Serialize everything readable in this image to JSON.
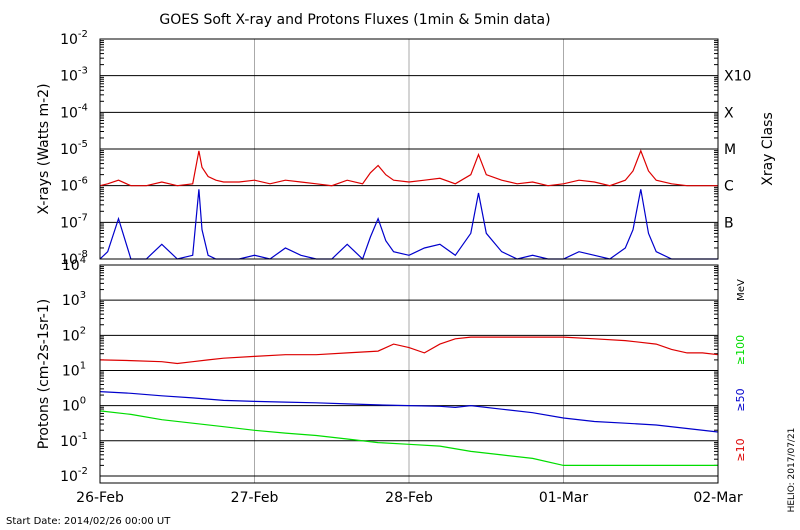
{
  "chart_data": [
    {
      "type": "line",
      "title": "GOES Soft X-ray and Protons Fluxes   (1min & 5min data)",
      "ylabel": "X-rays (Watts m-2)",
      "yscale": "log",
      "ylim_exp": [
        -8,
        -2
      ],
      "ytick_exp": [
        -8,
        -7,
        -6,
        -5,
        -4,
        -3,
        -2
      ],
      "x_dates": [
        "26-Feb",
        "27-Feb",
        "28-Feb",
        "01-Mar",
        "02-Mar"
      ],
      "xlim_days": [
        0,
        4
      ],
      "right_axis_label": "Xray Class",
      "class_labels": [
        {
          "label": "B",
          "exp": -7
        },
        {
          "label": "C",
          "exp": -6
        },
        {
          "label": "M",
          "exp": -5
        },
        {
          "label": "X",
          "exp": -4
        },
        {
          "label": "X10",
          "exp": -3
        }
      ],
      "series": [
        {
          "name": "",
          "color": "#dd0000",
          "x": [
            0,
            0.05,
            0.12,
            0.2,
            0.3,
            0.4,
            0.5,
            0.6,
            0.64,
            0.66,
            0.7,
            0.75,
            0.8,
            0.9,
            1.0,
            1.1,
            1.2,
            1.3,
            1.4,
            1.5,
            1.6,
            1.7,
            1.75,
            1.8,
            1.85,
            1.9,
            2.0,
            2.1,
            2.2,
            2.3,
            2.4,
            2.45,
            2.5,
            2.6,
            2.7,
            2.8,
            2.9,
            3.0,
            3.1,
            3.2,
            3.3,
            3.4,
            3.45,
            3.5,
            3.55,
            3.6,
            3.7,
            3.8,
            3.9,
            4.0
          ],
          "y_exp": [
            -6.0,
            -5.95,
            -5.85,
            -6.0,
            -6.0,
            -5.9,
            -6.0,
            -5.95,
            -5.05,
            -5.5,
            -5.75,
            -5.85,
            -5.9,
            -5.9,
            -5.85,
            -5.95,
            -5.85,
            -5.9,
            -5.95,
            -6.0,
            -5.85,
            -5.95,
            -5.65,
            -5.45,
            -5.7,
            -5.85,
            -5.9,
            -5.85,
            -5.8,
            -5.95,
            -5.7,
            -5.15,
            -5.7,
            -5.85,
            -5.95,
            -5.9,
            -6.0,
            -5.95,
            -5.85,
            -5.9,
            -6.0,
            -5.85,
            -5.6,
            -5.05,
            -5.6,
            -5.85,
            -5.95,
            -6.0,
            -6.0,
            -6.0
          ]
        },
        {
          "name": "",
          "color": "#0000cc",
          "x": [
            0,
            0.05,
            0.12,
            0.2,
            0.3,
            0.4,
            0.5,
            0.6,
            0.64,
            0.66,
            0.7,
            0.75,
            0.8,
            0.9,
            1.0,
            1.1,
            1.2,
            1.3,
            1.4,
            1.5,
            1.6,
            1.7,
            1.75,
            1.8,
            1.85,
            1.9,
            2.0,
            2.1,
            2.2,
            2.3,
            2.4,
            2.45,
            2.5,
            2.6,
            2.7,
            2.8,
            2.9,
            3.0,
            3.1,
            3.2,
            3.3,
            3.4,
            3.45,
            3.5,
            3.55,
            3.6,
            3.7,
            3.8,
            3.9,
            4.0
          ],
          "y_exp": [
            -8.0,
            -7.8,
            -6.9,
            -8.0,
            -8.0,
            -7.6,
            -8.0,
            -7.9,
            -6.1,
            -7.2,
            -7.9,
            -8.0,
            -8.0,
            -8.0,
            -7.9,
            -8.0,
            -7.7,
            -7.9,
            -8.0,
            -8.0,
            -7.6,
            -8.0,
            -7.4,
            -6.9,
            -7.5,
            -7.8,
            -7.9,
            -7.7,
            -7.6,
            -7.9,
            -7.3,
            -6.2,
            -7.3,
            -7.8,
            -8.0,
            -7.9,
            -8.0,
            -8.0,
            -7.8,
            -7.9,
            -8.0,
            -7.7,
            -7.2,
            -6.1,
            -7.3,
            -7.8,
            -8.0,
            -8.0,
            -8.0,
            -8.0
          ]
        }
      ]
    },
    {
      "type": "line",
      "ylabel": "Protons (cm-2s-1sr-1)",
      "yscale": "log",
      "ylim_exp": [
        -2.2,
        4
      ],
      "ytick_exp": [
        -2,
        -1,
        0,
        1,
        2,
        3,
        4
      ],
      "threshold_exp": 1,
      "right_unit": "MeV",
      "x_dates": [
        "26-Feb",
        "27-Feb",
        "28-Feb",
        "01-Mar",
        "02-Mar"
      ],
      "xlim_days": [
        0,
        4
      ],
      "start_date": "Start Date: 2014/02/26 00:00 UT",
      "side_credit": "HELIO: 2017/07/21",
      "series": [
        {
          "name": "≥10",
          "color": "#dd0000",
          "x": [
            0,
            0.2,
            0.4,
            0.5,
            0.6,
            0.7,
            0.8,
            1.0,
            1.2,
            1.4,
            1.6,
            1.8,
            1.9,
            2.0,
            2.1,
            2.2,
            2.3,
            2.4,
            2.6,
            2.8,
            3.0,
            3.2,
            3.4,
            3.6,
            3.7,
            3.8,
            3.9,
            4.0
          ],
          "y_exp": [
            1.3,
            1.28,
            1.25,
            1.2,
            1.25,
            1.3,
            1.35,
            1.4,
            1.45,
            1.45,
            1.5,
            1.55,
            1.75,
            1.65,
            1.5,
            1.75,
            1.9,
            1.95,
            1.95,
            1.95,
            1.95,
            1.9,
            1.85,
            1.75,
            1.6,
            1.5,
            1.5,
            1.45
          ]
        },
        {
          "name": "≥50",
          "color": "#0000cc",
          "x": [
            0,
            0.2,
            0.4,
            0.6,
            0.8,
            1.0,
            1.2,
            1.4,
            1.6,
            1.8,
            2.0,
            2.2,
            2.3,
            2.4,
            2.6,
            2.8,
            3.0,
            3.2,
            3.4,
            3.6,
            3.8,
            4.0
          ],
          "y_exp": [
            0.4,
            0.35,
            0.28,
            0.22,
            0.15,
            0.12,
            0.1,
            0.08,
            0.05,
            0.02,
            0.0,
            -0.02,
            -0.05,
            0.0,
            -0.1,
            -0.2,
            -0.35,
            -0.45,
            -0.5,
            -0.55,
            -0.65,
            -0.75
          ]
        },
        {
          "name": "≥100",
          "color": "#00dd00",
          "x": [
            0,
            0.2,
            0.4,
            0.6,
            0.8,
            1.0,
            1.2,
            1.4,
            1.6,
            1.8,
            2.0,
            2.2,
            2.4,
            2.6,
            2.8,
            3.0,
            3.2,
            3.4,
            3.6,
            3.8,
            4.0
          ],
          "y_exp": [
            -0.15,
            -0.25,
            -0.4,
            -0.5,
            -0.6,
            -0.7,
            -0.78,
            -0.85,
            -0.95,
            -1.05,
            -1.1,
            -1.15,
            -1.3,
            -1.4,
            -1.5,
            -1.7,
            -1.7,
            -1.7,
            -1.7,
            -1.7,
            -1.7
          ]
        }
      ]
    }
  ]
}
